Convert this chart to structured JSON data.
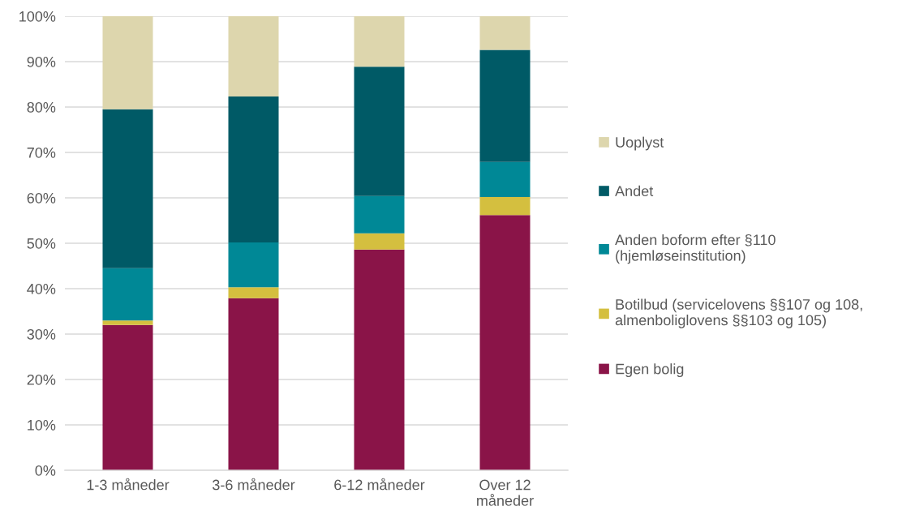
{
  "chart_data": {
    "type": "bar",
    "stacked": true,
    "categories": [
      "1-3 måneder",
      "3-6 måneder",
      "6-12 måneder",
      "Over 12 måneder"
    ],
    "series": [
      {
        "name": "Egen bolig",
        "color": "#8a1448",
        "values": [
          32,
          37.9,
          48.6,
          56.2
        ]
      },
      {
        "name": "Botilbud (servicelovens §§107 og 108, almenboliglovens §§103 og 105)",
        "color": "#d4bf3f",
        "values": [
          1,
          2.4,
          3.6,
          4
        ]
      },
      {
        "name": "Anden boform efter §110 (hjemløseinstitution)",
        "color": "#008896",
        "values": [
          11.5,
          9.9,
          8.2,
          7.7
        ]
      },
      {
        "name": "Andet",
        "color": "#005a66",
        "values": [
          35,
          32.1,
          28.5,
          24.7
        ]
      },
      {
        "name": "Uoplyst",
        "color": "#ddd6ad",
        "values": [
          20.5,
          17.7,
          11.1,
          7.4
        ]
      }
    ],
    "ylim": [
      0,
      100
    ],
    "yticks": [
      {
        "value": 0,
        "label": "0%"
      },
      {
        "value": 10,
        "label": "10%"
      },
      {
        "value": 20,
        "label": "20%"
      },
      {
        "value": 30,
        "label": "30%"
      },
      {
        "value": 40,
        "label": "40%"
      },
      {
        "value": 50,
        "label": "50%"
      },
      {
        "value": 60,
        "label": "60%"
      },
      {
        "value": 70,
        "label": "70%"
      },
      {
        "value": 80,
        "label": "80%"
      },
      {
        "value": 90,
        "label": "90%"
      },
      {
        "value": 100,
        "label": "100%"
      }
    ],
    "grid": "y",
    "legend": "right"
  }
}
